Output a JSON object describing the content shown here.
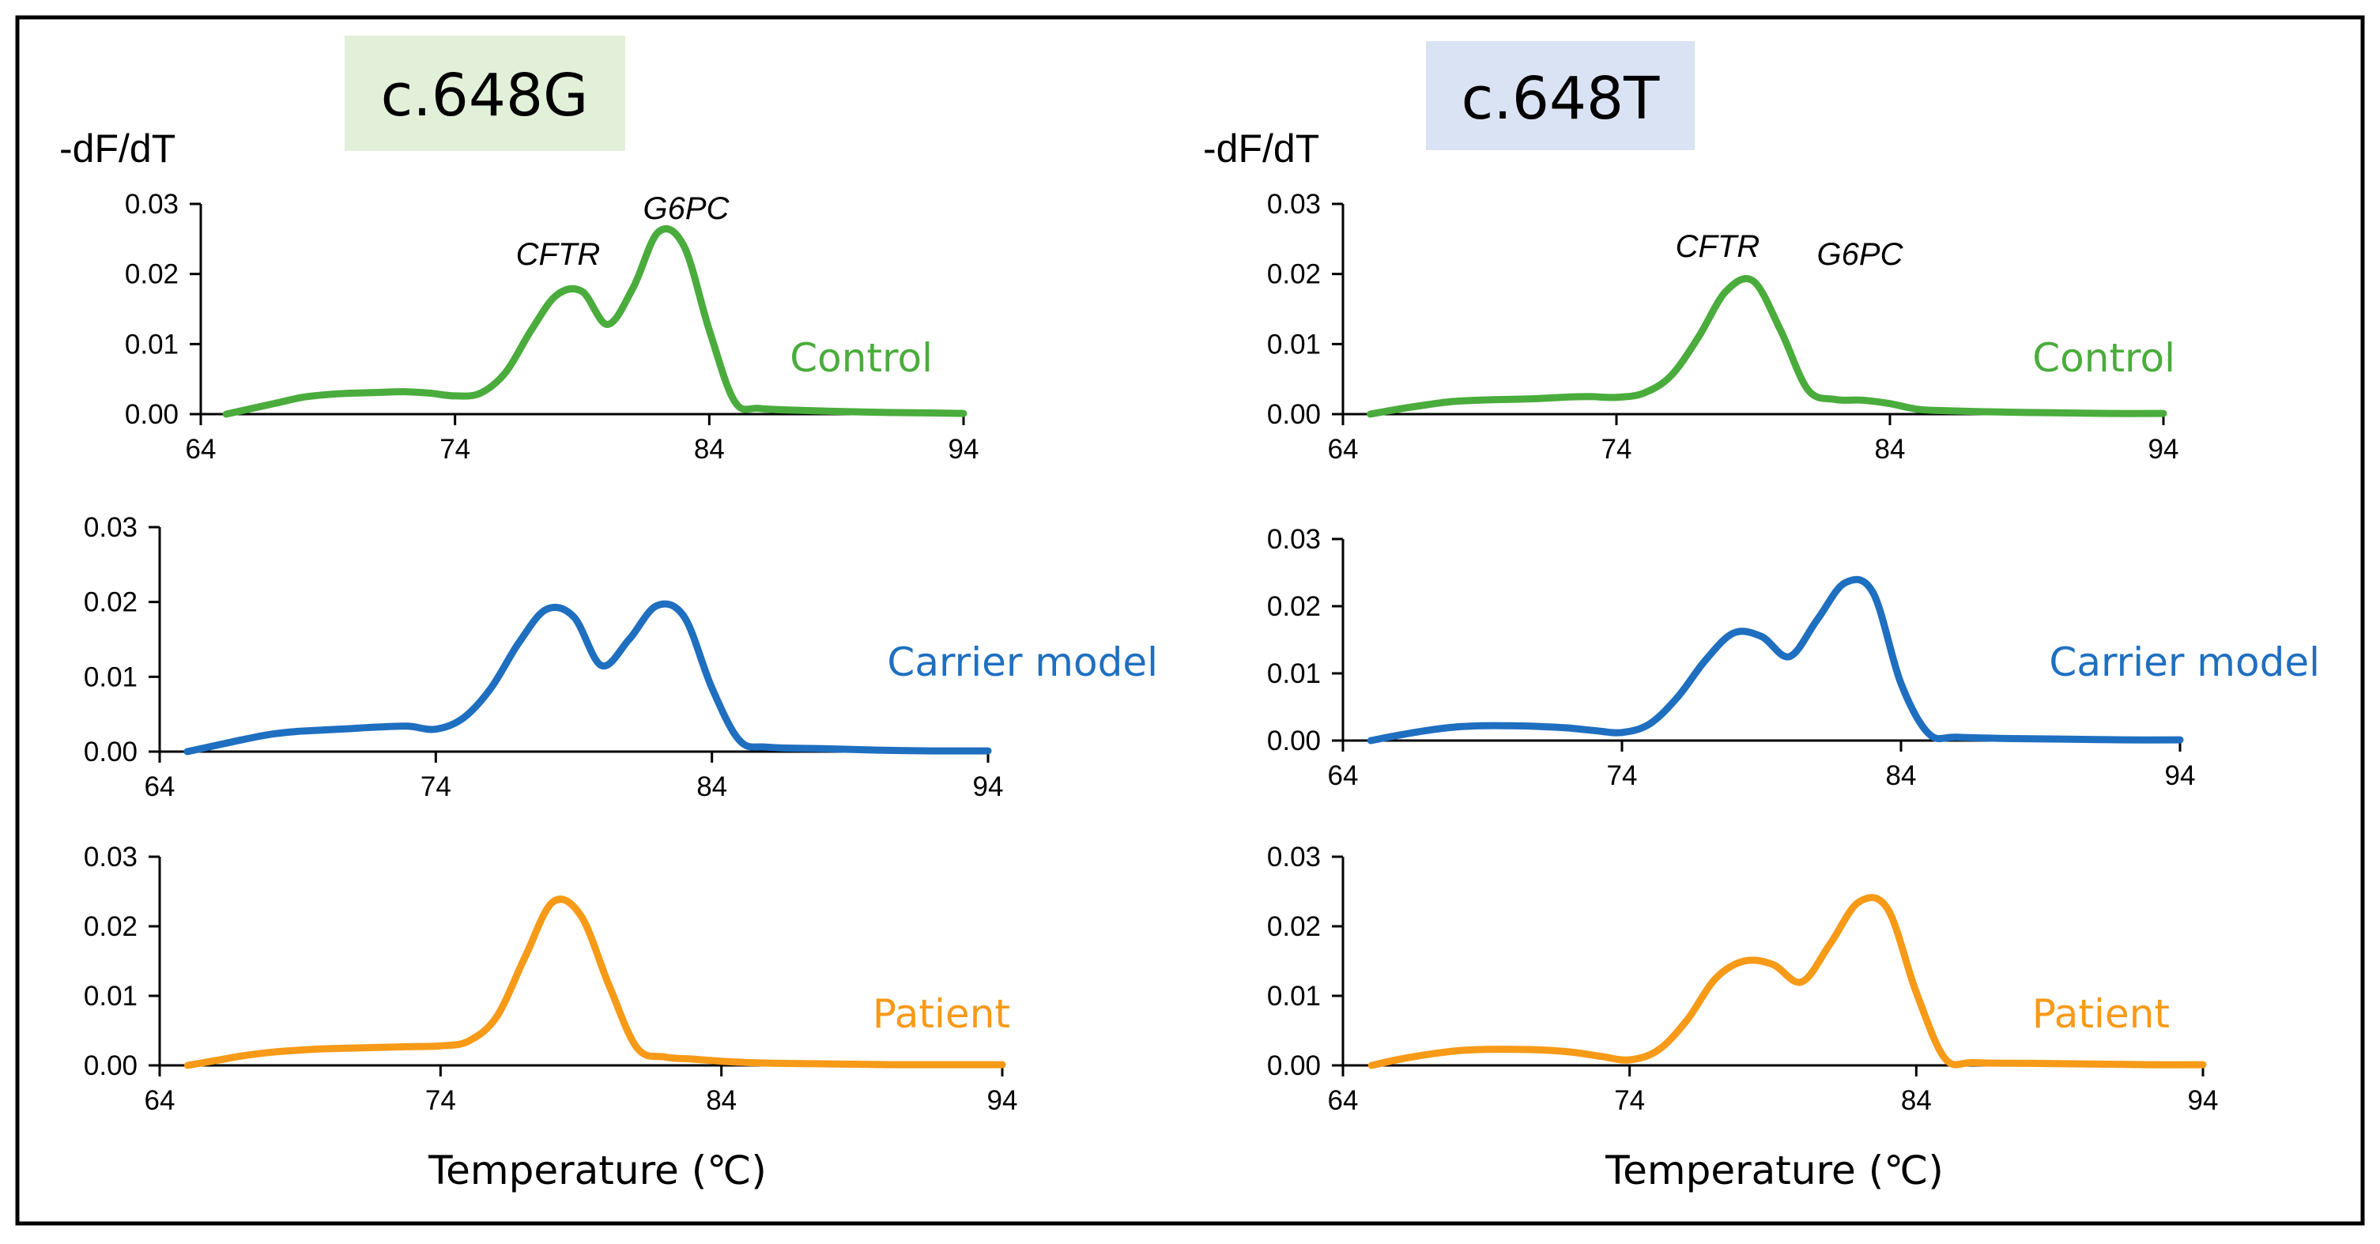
{
  "figure": {
    "colors": {
      "Control": "#4aac3c",
      "Carrier model": "#1f6fc0",
      "Patient": "#f79a17",
      "title_G_bg": "#e2f0d9",
      "title_T_bg": "#dae3f3"
    }
  },
  "chart_data": [
    {
      "id": "G-control",
      "type": "line",
      "title": "c.648G",
      "condition": "Control",
      "ylabel": "-dF/dT",
      "xlabel": "",
      "ylim": [
        0,
        0.03
      ],
      "xlim": [
        64,
        94
      ],
      "xticks": [
        "64",
        "74",
        "84",
        "94"
      ],
      "yticks": [
        "0.00",
        "0.01",
        "0.02",
        "0.03"
      ],
      "gene_labels": [
        "CFTR",
        "G6PC"
      ],
      "x": [
        65,
        66,
        67,
        68,
        69,
        70,
        71,
        72,
        73,
        74,
        75,
        76,
        77,
        78,
        79,
        80,
        81,
        82,
        83,
        84,
        85,
        86,
        88,
        90,
        92,
        94
      ],
      "y": [
        0.0,
        0.0008,
        0.0016,
        0.0024,
        0.0028,
        0.003,
        0.0031,
        0.0032,
        0.003,
        0.0026,
        0.003,
        0.006,
        0.012,
        0.017,
        0.0175,
        0.0128,
        0.018,
        0.026,
        0.024,
        0.012,
        0.0018,
        0.0008,
        0.0005,
        0.0003,
        0.0002,
        0.0001
      ]
    },
    {
      "id": "T-control",
      "type": "line",
      "title": "c.648T",
      "condition": "Control",
      "ylabel": "-dF/dT",
      "xlabel": "",
      "ylim": [
        0,
        0.03
      ],
      "xlim": [
        64,
        94
      ],
      "xticks": [
        "64",
        "74",
        "84",
        "94"
      ],
      "yticks": [
        "0.00",
        "0.01",
        "0.02",
        "0.03"
      ],
      "gene_labels": [
        "CFTR",
        "G6PC"
      ],
      "x": [
        65,
        66,
        67,
        68,
        69,
        70,
        71,
        72,
        73,
        74,
        75,
        76,
        77,
        78,
        79,
        80,
        81,
        82,
        83,
        84,
        85,
        86,
        88,
        90,
        92,
        94
      ],
      "y": [
        0.0,
        0.0007,
        0.0013,
        0.0018,
        0.002,
        0.0021,
        0.0022,
        0.0024,
        0.0025,
        0.0024,
        0.003,
        0.0055,
        0.011,
        0.0175,
        0.019,
        0.012,
        0.0035,
        0.0021,
        0.002,
        0.0015,
        0.0007,
        0.0005,
        0.0003,
        0.0002,
        0.0001,
        0.0001
      ]
    },
    {
      "id": "G-carrier",
      "type": "line",
      "title": "c.648G",
      "condition": "Carrier model",
      "ylabel": "",
      "xlabel": "",
      "ylim": [
        0,
        0.03
      ],
      "xlim": [
        64,
        94
      ],
      "xticks": [
        "64",
        "74",
        "84",
        "94"
      ],
      "yticks": [
        "0.00",
        "0.01",
        "0.02",
        "0.03"
      ],
      "x": [
        65,
        66,
        67,
        68,
        69,
        70,
        71,
        72,
        73,
        74,
        75,
        76,
        77,
        78,
        79,
        80,
        81,
        82,
        83,
        84,
        85,
        86,
        88,
        90,
        92,
        94
      ],
      "y": [
        0.0,
        0.0008,
        0.0016,
        0.0023,
        0.0027,
        0.0029,
        0.0031,
        0.0033,
        0.0034,
        0.003,
        0.0045,
        0.0085,
        0.0145,
        0.019,
        0.018,
        0.0115,
        0.015,
        0.0195,
        0.018,
        0.0085,
        0.0015,
        0.0006,
        0.0004,
        0.0002,
        0.0001,
        0.0001
      ]
    },
    {
      "id": "T-carrier",
      "type": "line",
      "title": "c.648T",
      "condition": "Carrier model",
      "ylabel": "",
      "xlabel": "",
      "ylim": [
        0,
        0.03
      ],
      "xlim": [
        64,
        94
      ],
      "xticks": [
        "64",
        "74",
        "84",
        "94"
      ],
      "yticks": [
        "0.00",
        "0.01",
        "0.02",
        "0.03"
      ],
      "x": [
        65,
        66,
        67,
        68,
        69,
        70,
        71,
        72,
        73,
        74,
        75,
        76,
        77,
        78,
        79,
        80,
        81,
        82,
        83,
        84,
        85,
        86,
        88,
        90,
        92,
        94
      ],
      "y": [
        0.0,
        0.0008,
        0.0015,
        0.002,
        0.0022,
        0.0022,
        0.0021,
        0.0019,
        0.0015,
        0.0012,
        0.0025,
        0.0065,
        0.012,
        0.016,
        0.0155,
        0.0125,
        0.018,
        0.0235,
        0.022,
        0.0085,
        0.001,
        0.0005,
        0.0003,
        0.0002,
        0.0001,
        0.0001
      ]
    },
    {
      "id": "G-patient",
      "type": "line",
      "title": "c.648G",
      "condition": "Patient",
      "ylabel": "",
      "xlabel": "Temperature (℃)",
      "ylim": [
        0,
        0.03
      ],
      "xlim": [
        64,
        94
      ],
      "xticks": [
        "64",
        "74",
        "84",
        "94"
      ],
      "yticks": [
        "0.00",
        "0.01",
        "0.02",
        "0.03"
      ],
      "x": [
        65,
        66,
        67,
        68,
        69,
        70,
        71,
        72,
        73,
        74,
        75,
        76,
        77,
        78,
        79,
        80,
        81,
        82,
        83,
        84,
        85,
        86,
        88,
        90,
        92,
        94
      ],
      "y": [
        0.0,
        0.0007,
        0.0014,
        0.0019,
        0.0022,
        0.0024,
        0.0025,
        0.0026,
        0.0027,
        0.0028,
        0.0035,
        0.007,
        0.0155,
        0.0235,
        0.0215,
        0.0115,
        0.0025,
        0.0012,
        0.0009,
        0.0006,
        0.0004,
        0.0003,
        0.0002,
        0.0001,
        0.0001,
        0.0001
      ]
    },
    {
      "id": "T-patient",
      "type": "line",
      "title": "c.648T",
      "condition": "Patient",
      "ylabel": "",
      "xlabel": "Temperature (℃)",
      "ylim": [
        0,
        0.03
      ],
      "xlim": [
        64,
        94
      ],
      "xticks": [
        "64",
        "74",
        "84",
        "94"
      ],
      "yticks": [
        "0.00",
        "0.01",
        "0.02",
        "0.03"
      ],
      "x": [
        65,
        66,
        67,
        68,
        69,
        70,
        71,
        72,
        73,
        74,
        75,
        76,
        77,
        78,
        79,
        80,
        81,
        82,
        83,
        84,
        85,
        86,
        88,
        90,
        92,
        94
      ],
      "y": [
        0.0,
        0.0009,
        0.0016,
        0.0021,
        0.0023,
        0.0023,
        0.0022,
        0.0019,
        0.0013,
        0.0008,
        0.0022,
        0.0065,
        0.0125,
        0.015,
        0.0145,
        0.012,
        0.0175,
        0.0235,
        0.0225,
        0.0105,
        0.001,
        0.0004,
        0.0003,
        0.0002,
        0.0001,
        0.0001
      ]
    }
  ]
}
